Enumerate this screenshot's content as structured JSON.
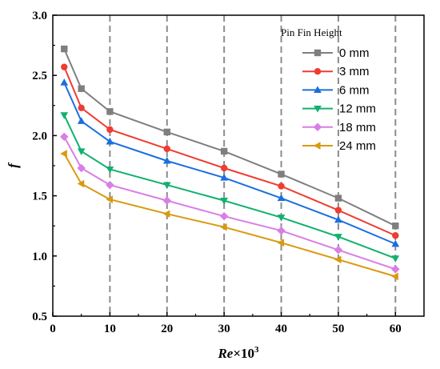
{
  "chart_data": {
    "type": "line",
    "xlabel_italic": "Re",
    "xlabel_rest": "×10",
    "xlabel_sup": "3",
    "ylabel": "f",
    "xlim": [
      0,
      65
    ],
    "ylim": [
      0.5,
      3.0
    ],
    "xticks": [
      0,
      10,
      20,
      30,
      40,
      50,
      60
    ],
    "yticks": [
      0.5,
      1.0,
      1.5,
      2.0,
      2.5,
      3.0
    ],
    "ytick_labels": [
      "0.5",
      "1.0",
      "1.5",
      "2.0",
      "2.5",
      "3.0"
    ],
    "vertical_dashed_gridlines_at": [
      10,
      20,
      30,
      40,
      50,
      60
    ],
    "legend_title": "Pin Fin Height",
    "legend_position": "top-right",
    "x": [
      2,
      5,
      10,
      20,
      30,
      40,
      50,
      60
    ],
    "series": [
      {
        "name": "0 mm",
        "color": "#7f7f7f",
        "marker": "square",
        "values": [
          2.72,
          2.39,
          2.2,
          2.03,
          1.87,
          1.68,
          1.48,
          1.25
        ]
      },
      {
        "name": "3 mm",
        "color": "#f03c32",
        "marker": "circle",
        "values": [
          2.57,
          2.23,
          2.05,
          1.89,
          1.73,
          1.58,
          1.38,
          1.17
        ]
      },
      {
        "name": "6 mm",
        "color": "#1a6fdf",
        "marker": "triangle-up",
        "values": [
          2.44,
          2.12,
          1.95,
          1.79,
          1.65,
          1.48,
          1.3,
          1.1
        ]
      },
      {
        "name": "12 mm",
        "color": "#12b06e",
        "marker": "triangle-down",
        "values": [
          2.17,
          1.87,
          1.72,
          1.59,
          1.46,
          1.32,
          1.16,
          0.98
        ]
      },
      {
        "name": "18 mm",
        "color": "#d97ee6",
        "marker": "diamond",
        "values": [
          1.99,
          1.73,
          1.59,
          1.46,
          1.33,
          1.21,
          1.05,
          0.89
        ]
      },
      {
        "name": "24 mm",
        "color": "#d99a0f",
        "marker": "triangle-left",
        "values": [
          1.85,
          1.6,
          1.47,
          1.35,
          1.24,
          1.11,
          0.97,
          0.83
        ]
      }
    ]
  }
}
